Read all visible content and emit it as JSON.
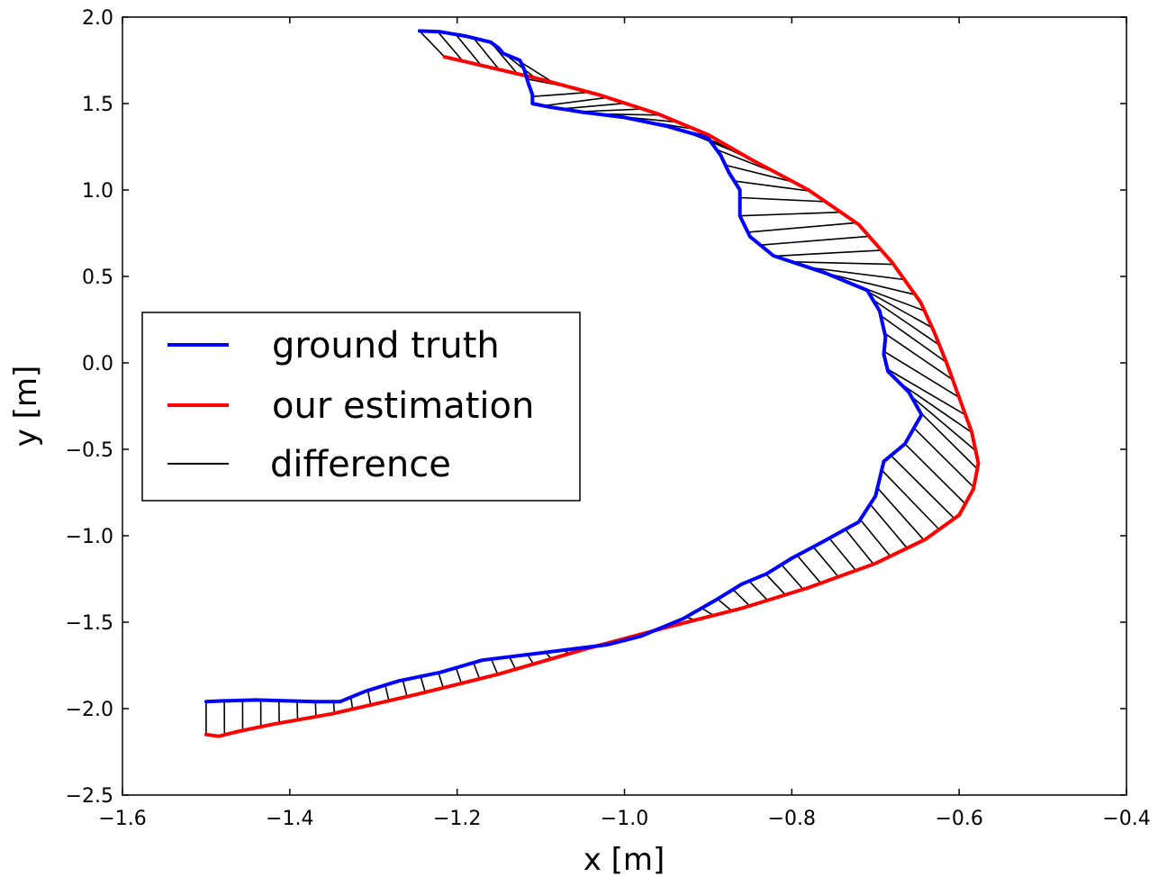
{
  "chart_data": {
    "type": "line",
    "title": "",
    "xlabel": "x [m]",
    "ylabel": "y [m]",
    "xlim": [
      -1.6,
      -0.4
    ],
    "ylim": [
      -2.5,
      2.0
    ],
    "grid": false,
    "xticks": [
      -1.6,
      -1.4,
      -1.2,
      -1.0,
      -0.8,
      -0.6,
      -0.4
    ],
    "xtick_labels": [
      "−1.6",
      "−1.4",
      "−1.2",
      "−1.0",
      "−0.8",
      "−0.6",
      "−0.4"
    ],
    "yticks": [
      2.0,
      1.5,
      1.0,
      0.5,
      0.0,
      -0.5,
      -1.0,
      -1.5,
      -2.0,
      -2.5
    ],
    "ytick_labels": [
      "2.0",
      "1.5",
      "1.0",
      "0.5",
      "0.0",
      "−0.5",
      "−1.0",
      "−1.5",
      "−2.0",
      "−2.5"
    ],
    "legend": {
      "position": "center-left",
      "entries": [
        {
          "label": "ground truth",
          "color": "#0000ff"
        },
        {
          "label": "our estimation",
          "color": "#ff0000"
        },
        {
          "label": "difference",
          "color": "#000000"
        }
      ]
    },
    "series": [
      {
        "name": "ground truth",
        "color": "#0000ff",
        "points": [
          [
            -1.245,
            1.92
          ],
          [
            -1.22,
            1.915
          ],
          [
            -1.19,
            1.89
          ],
          [
            -1.16,
            1.855
          ],
          [
            -1.15,
            1.82
          ],
          [
            -1.145,
            1.79
          ],
          [
            -1.125,
            1.75
          ],
          [
            -1.12,
            1.7
          ],
          [
            -1.115,
            1.62
          ],
          [
            -1.11,
            1.55
          ],
          [
            -1.11,
            1.5
          ],
          [
            -1.09,
            1.48
          ],
          [
            -1.05,
            1.45
          ],
          [
            -1.0,
            1.42
          ],
          [
            -0.95,
            1.37
          ],
          [
            -0.9,
            1.3
          ],
          [
            -0.885,
            1.2
          ],
          [
            -0.875,
            1.1
          ],
          [
            -0.862,
            1.0
          ],
          [
            -0.862,
            0.85
          ],
          [
            -0.85,
            0.73
          ],
          [
            -0.822,
            0.62
          ],
          [
            -0.76,
            0.52
          ],
          [
            -0.71,
            0.42
          ],
          [
            -0.695,
            0.3
          ],
          [
            -0.688,
            0.15
          ],
          [
            -0.69,
            0.05
          ],
          [
            -0.685,
            -0.05
          ],
          [
            -0.66,
            -0.17
          ],
          [
            -0.645,
            -0.3
          ],
          [
            -0.665,
            -0.47
          ],
          [
            -0.69,
            -0.57
          ],
          [
            -0.7,
            -0.77
          ],
          [
            -0.72,
            -0.92
          ],
          [
            -0.765,
            -1.04
          ],
          [
            -0.8,
            -1.13
          ],
          [
            -0.83,
            -1.22
          ],
          [
            -0.86,
            -1.28
          ],
          [
            -0.89,
            -1.37
          ],
          [
            -0.93,
            -1.48
          ],
          [
            -0.98,
            -1.58
          ],
          [
            -1.02,
            -1.63
          ],
          [
            -1.07,
            -1.66
          ],
          [
            -1.12,
            -1.69
          ],
          [
            -1.17,
            -1.72
          ],
          [
            -1.22,
            -1.79
          ],
          [
            -1.27,
            -1.84
          ],
          [
            -1.31,
            -1.9
          ],
          [
            -1.34,
            -1.96
          ],
          [
            -1.37,
            -1.96
          ],
          [
            -1.44,
            -1.95
          ],
          [
            -1.48,
            -1.955
          ],
          [
            -1.5,
            -1.96
          ]
        ]
      },
      {
        "name": "our estimation",
        "color": "#ff0000",
        "points": [
          [
            -1.215,
            1.77
          ],
          [
            -1.17,
            1.72
          ],
          [
            -1.1,
            1.64
          ],
          [
            -1.03,
            1.55
          ],
          [
            -0.96,
            1.44
          ],
          [
            -0.9,
            1.32
          ],
          [
            -0.85,
            1.18
          ],
          [
            -0.78,
            1.0
          ],
          [
            -0.72,
            0.8
          ],
          [
            -0.68,
            0.58
          ],
          [
            -0.646,
            0.35
          ],
          [
            -0.63,
            0.18
          ],
          [
            -0.615,
            0.0
          ],
          [
            -0.6,
            -0.2
          ],
          [
            -0.585,
            -0.4
          ],
          [
            -0.577,
            -0.58
          ],
          [
            -0.583,
            -0.73
          ],
          [
            -0.6,
            -0.88
          ],
          [
            -0.64,
            -1.02
          ],
          [
            -0.7,
            -1.16
          ],
          [
            -0.78,
            -1.3
          ],
          [
            -0.86,
            -1.42
          ],
          [
            -0.95,
            -1.53
          ],
          [
            -1.05,
            -1.66
          ],
          [
            -1.15,
            -1.8
          ],
          [
            -1.25,
            -1.92
          ],
          [
            -1.35,
            -2.03
          ],
          [
            -1.42,
            -2.09
          ],
          [
            -1.46,
            -2.13
          ],
          [
            -1.485,
            -2.16
          ],
          [
            -1.5,
            -2.15
          ]
        ]
      }
    ],
    "difference_pairs": 85
  }
}
